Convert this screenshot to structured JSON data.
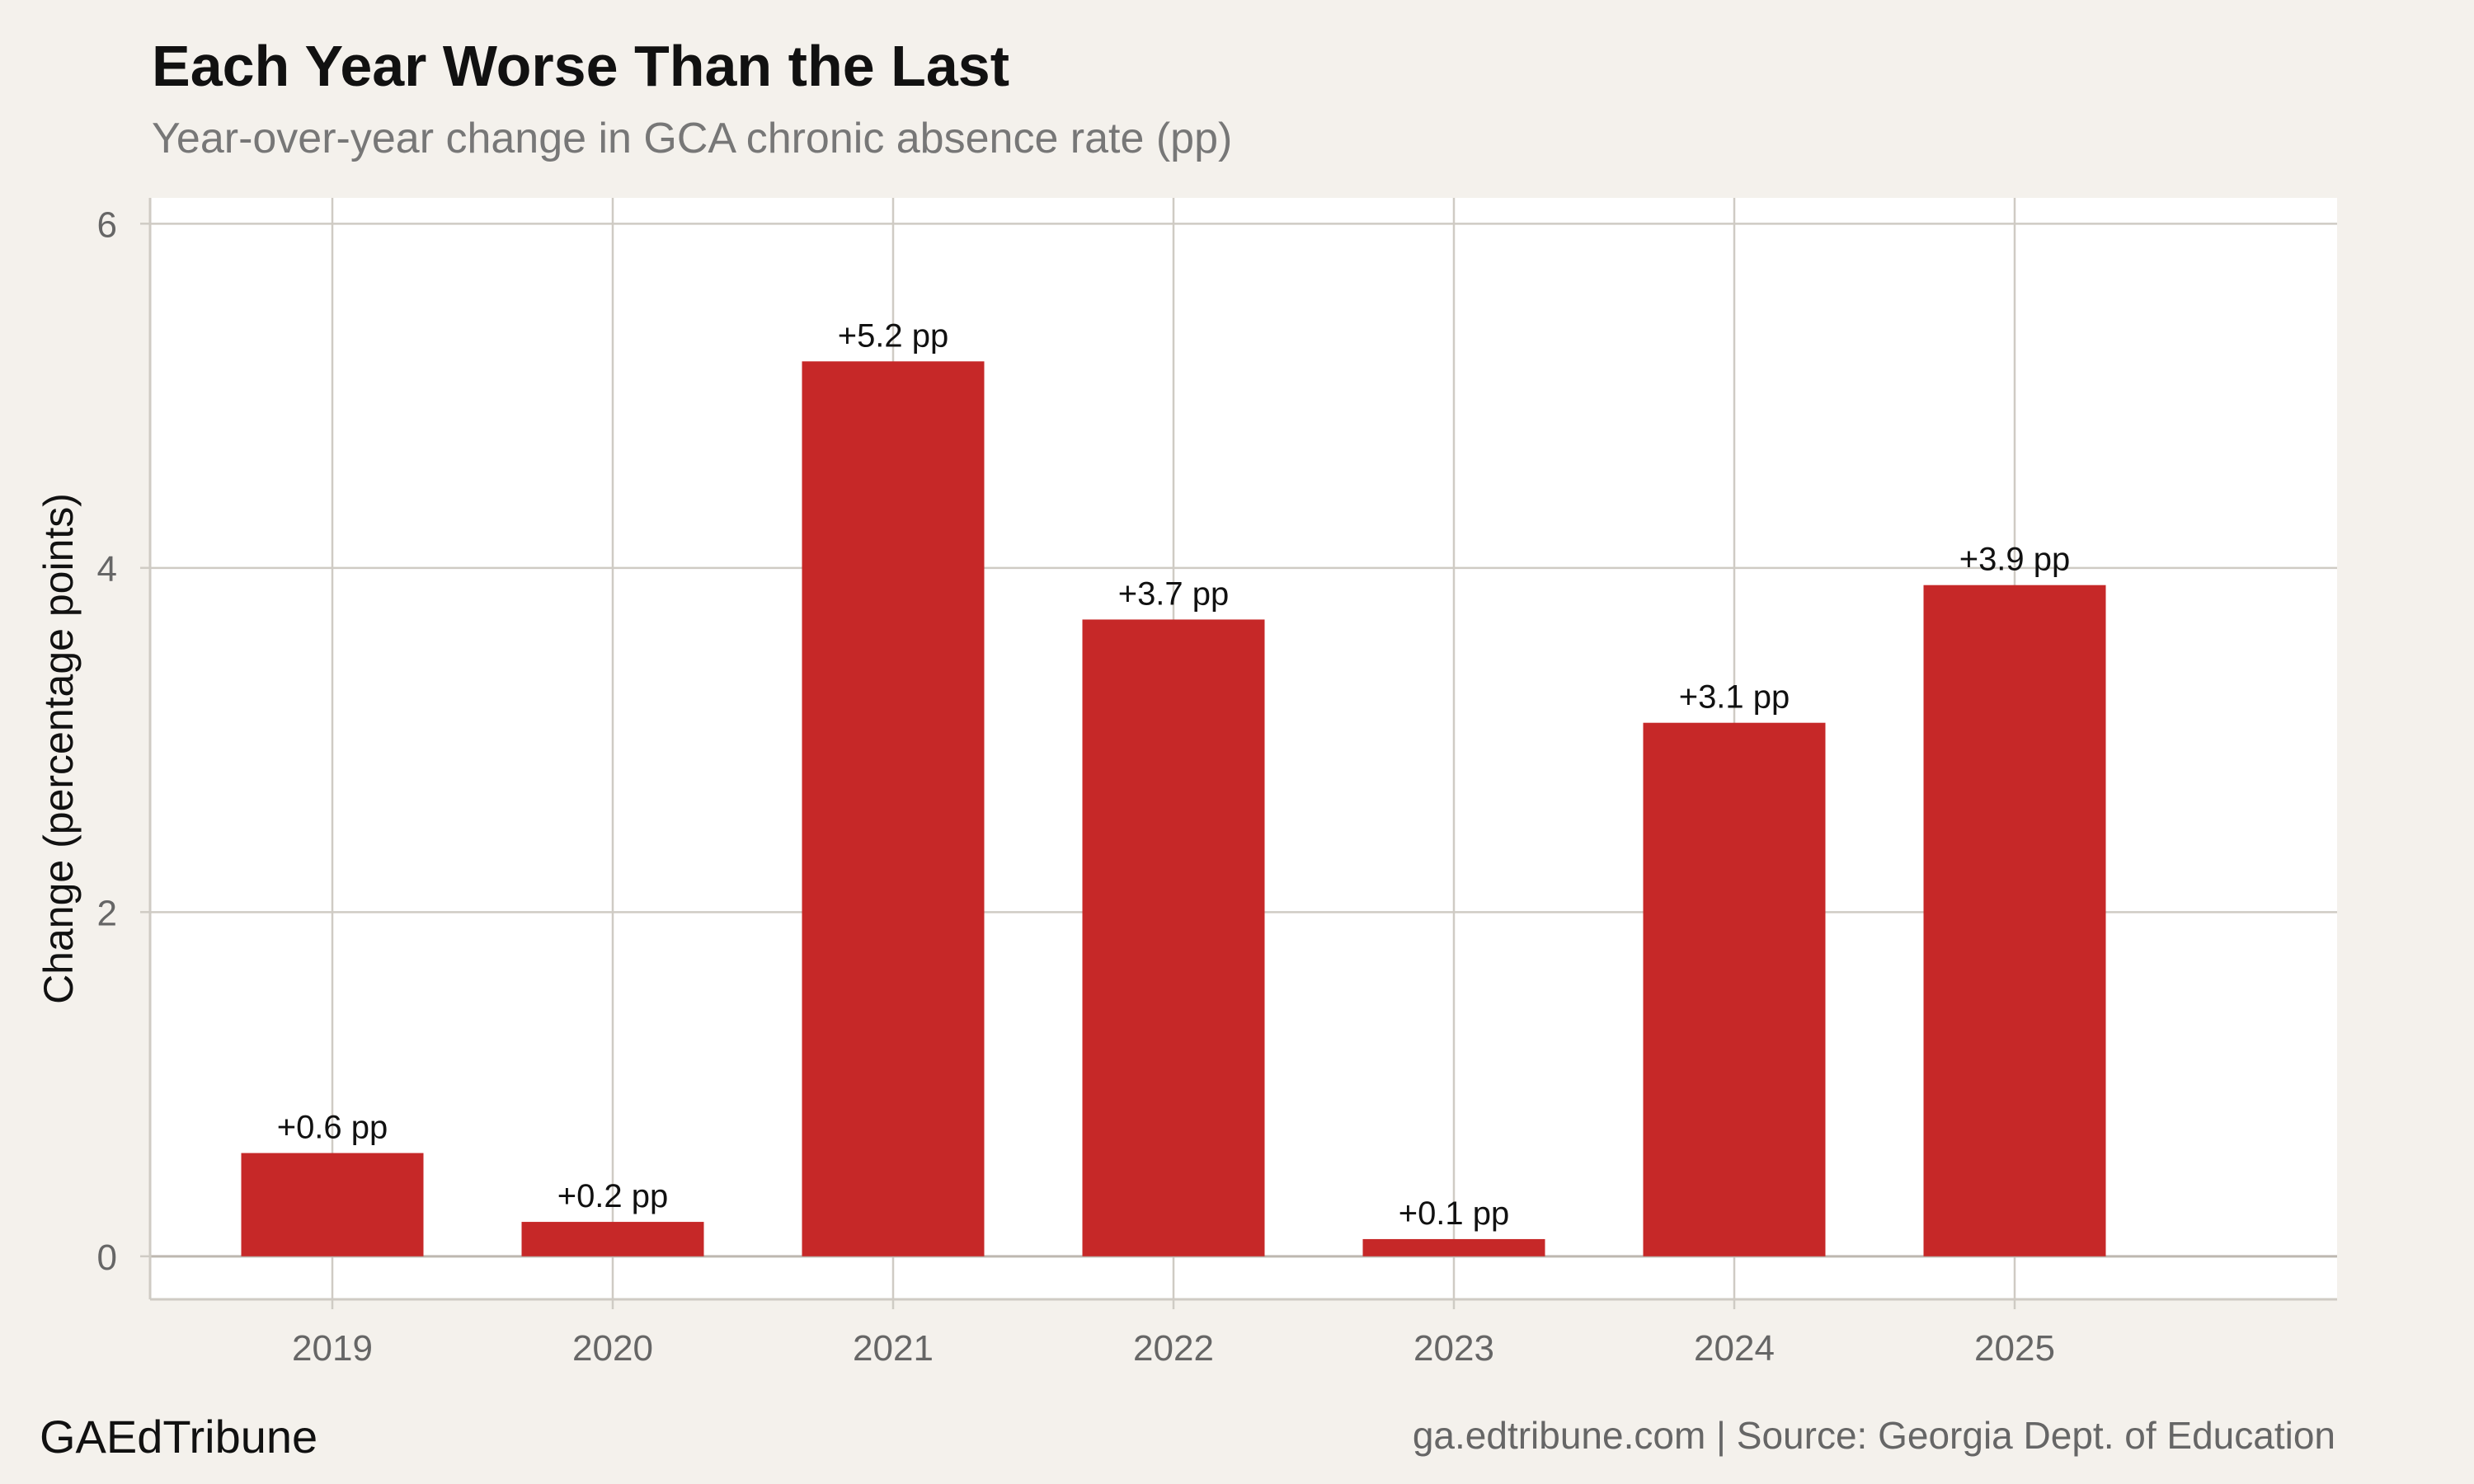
{
  "header": {
    "title": "Each Year Worse Than the Last",
    "subtitle": "Year-over-year change in GCA chronic absence rate (pp)"
  },
  "footer": {
    "brand": "GAEdTribune",
    "source": "ga.edtribune.com | Source: Georgia Dept. of Education"
  },
  "colors": {
    "bar": "#c62828",
    "background": "#f4f1ec",
    "panel": "#ffffff",
    "grid": "#cfcbc4"
  },
  "chart_data": {
    "type": "bar",
    "title": "Each Year Worse Than the Last",
    "subtitle": "Year-over-year change in GCA chronic absence rate (pp)",
    "xlabel": "",
    "ylabel": "Change (percentage points)",
    "categories": [
      "2019",
      "2020",
      "2021",
      "2022",
      "2023",
      "2024",
      "2025"
    ],
    "values": [
      0.6,
      0.2,
      5.2,
      3.7,
      0.1,
      3.1,
      3.9
    ],
    "data_labels": [
      "+0.6 pp",
      "+0.2 pp",
      "+5.2 pp",
      "+3.7 pp",
      "+0.1 pp",
      "+3.1 pp",
      "+3.9 pp"
    ],
    "ylim": [
      -0.25,
      6.15
    ],
    "yticks": [
      0,
      2,
      4,
      6
    ],
    "xlim": [
      0.35,
      8.15
    ],
    "grid": true,
    "legend": "none"
  }
}
